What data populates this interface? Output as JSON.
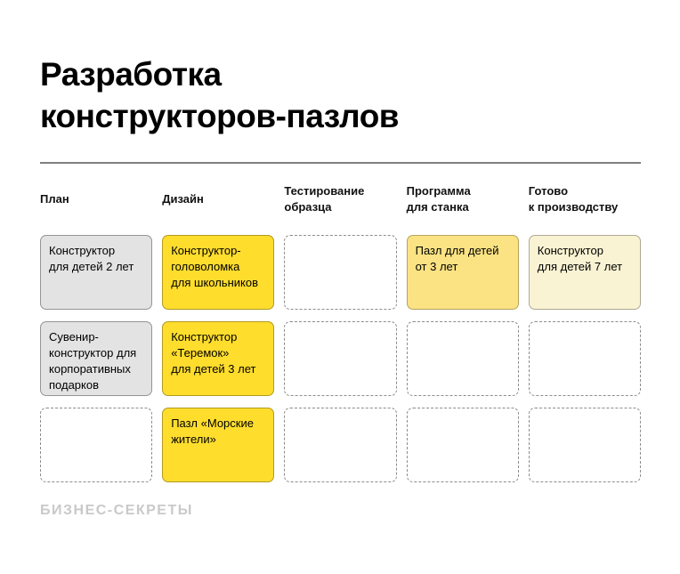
{
  "page": {
    "title": "Разработка\nконструкторов-пазлов",
    "brand": "БИЗНЕС-СЕКРЕТЫ"
  },
  "colors": {
    "accent_yellow": "#FFDD2D",
    "yellow_medium": "#FBE383",
    "yellow_pale": "#FAF3D3",
    "card_gray": "#E3E3E3",
    "dashed_border": "#8C8C8C",
    "rule_gray": "#7F7F7F",
    "brand_gray": "#C9C9C9"
  },
  "board": {
    "columns": [
      {
        "label": "План"
      },
      {
        "label": "Дизайн"
      },
      {
        "label": "Тестирование\nобразца"
      },
      {
        "label": "Программа\nдля станка"
      },
      {
        "label": "Готово\nк производству"
      }
    ],
    "rows": [
      [
        {
          "text": "Конструктор\nдля детей 2 лет",
          "variant": "gray"
        },
        {
          "text": "Конструктор-\nголоволомка\nдля школьников",
          "variant": "yellow"
        },
        {
          "text": "",
          "variant": "empty"
        },
        {
          "text": "Пазл для детей\nот 3 лет",
          "variant": "yellow-medium"
        },
        {
          "text": "Конструктор\nдля детей 7 лет",
          "variant": "yellow-pale"
        }
      ],
      [
        {
          "text": "Сувенир-\nконструктор для\nкорпоративных\nподарков",
          "variant": "gray"
        },
        {
          "text": "Конструктор\n«Теремок»\nдля детей 3 лет",
          "variant": "yellow"
        },
        {
          "text": "",
          "variant": "empty"
        },
        {
          "text": "",
          "variant": "empty"
        },
        {
          "text": "",
          "variant": "empty"
        }
      ],
      [
        {
          "text": "",
          "variant": "empty"
        },
        {
          "text": "Пазл «Морские\nжители»",
          "variant": "yellow"
        },
        {
          "text": "",
          "variant": "empty"
        },
        {
          "text": "",
          "variant": "empty"
        },
        {
          "text": "",
          "variant": "empty"
        }
      ]
    ]
  }
}
